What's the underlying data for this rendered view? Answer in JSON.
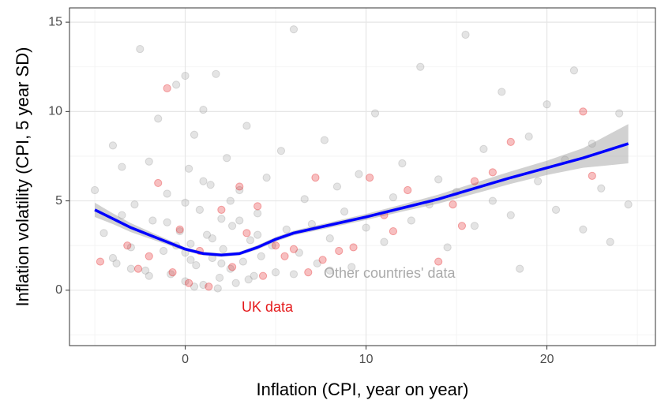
{
  "chart_data": {
    "type": "scatter",
    "xlabel": "Inflation (CPI, year on year)",
    "ylabel": "Inflation volatility (CPI, 5 year SD)",
    "xlim": [
      -6.4,
      26
    ],
    "ylim": [
      -3.1,
      15.8
    ],
    "xticks": [
      0,
      10,
      20
    ],
    "yticks": [
      0,
      5,
      10,
      15
    ],
    "x_minor_grid": [
      -5,
      5,
      15,
      25
    ],
    "y_minor_grid": [
      -2.5,
      2.5,
      7.5,
      12.5
    ],
    "grid": true,
    "series": [
      {
        "name": "Other countries' data",
        "color": "#9e9e9e",
        "x": [
          -5,
          -4.5,
          -4,
          -3.8,
          -3.5,
          -3,
          -2.8,
          -2.5,
          -2.2,
          -2,
          -1.8,
          -1.5,
          -1.2,
          -1,
          -0.8,
          -0.5,
          -0.3,
          0,
          0,
          0.2,
          0.3,
          0.5,
          0.6,
          0.8,
          1,
          1,
          1.2,
          1.4,
          1.5,
          1.7,
          1.9,
          2,
          2.1,
          2.3,
          2.5,
          2.6,
          2.8,
          3,
          3.2,
          3.4,
          3.6,
          3.8,
          4,
          4.2,
          4.5,
          4.8,
          5,
          5.3,
          5.6,
          6,
          6.3,
          6.6,
          7,
          7.3,
          7.7,
          8,
          8.4,
          8.8,
          9.2,
          9.6,
          10,
          10.5,
          11,
          11.5,
          12,
          12.5,
          13,
          13.5,
          14,
          14.5,
          15,
          15.5,
          16,
          16.5,
          17,
          17.5,
          18,
          18.5,
          19,
          19.5,
          20,
          20.5,
          21,
          21.5,
          22,
          22.5,
          23,
          23.5,
          24,
          24.5,
          -3,
          -1,
          0,
          0.5,
          1.5,
          2.5,
          3.5,
          -2,
          1,
          4,
          0,
          2,
          -4,
          -0.5,
          3,
          6,
          8,
          -3.5,
          0.3,
          1.8
        ],
        "y": [
          5.6,
          3.2,
          8.1,
          1.5,
          6.9,
          2.4,
          4.8,
          13.5,
          1.1,
          7.2,
          3.9,
          9.6,
          2.2,
          5.4,
          0.9,
          11.5,
          3.3,
          12,
          0.5,
          6.8,
          2.6,
          8.7,
          1.4,
          4.5,
          0.3,
          10.1,
          3.1,
          5.9,
          1.8,
          12.1,
          0.7,
          4,
          2.3,
          7.4,
          1.2,
          3.6,
          0.4,
          5.6,
          1.6,
          9.2,
          2.8,
          0.8,
          4.3,
          1.9,
          6.3,
          2.5,
          1,
          7.8,
          3.4,
          14.6,
          2.1,
          5.1,
          3.7,
          1.5,
          8.4,
          2.9,
          5.8,
          4.4,
          1.3,
          6.5,
          3.5,
          9.9,
          2.7,
          5.2,
          7.1,
          3.9,
          12.5,
          4.8,
          6.2,
          2.4,
          5.5,
          14.3,
          3.6,
          7.9,
          5,
          11.1,
          4.2,
          1.2,
          8.6,
          6.1,
          10.4,
          4.5,
          7.3,
          12.3,
          3.4,
          8.2,
          5.7,
          2.7,
          9.9,
          4.8,
          1.2,
          3.8,
          4.9,
          0.2,
          2.9,
          5,
          0.6,
          0.8,
          6.1,
          3.1,
          2.1,
          1.5,
          1.8,
          2.5,
          3.9,
          0.9,
          1.1,
          4.2,
          1.7,
          0.1
        ]
      },
      {
        "name": "UK data",
        "color": "#e41a1c",
        "x": [
          -4.7,
          -3.2,
          -2.6,
          -2,
          -1.5,
          -1,
          -0.7,
          -0.3,
          0.2,
          0.8,
          1.3,
          2,
          2.6,
          3,
          3.4,
          4,
          4.3,
          5,
          5.5,
          6,
          6.8,
          7.2,
          7.6,
          8.5,
          9.3,
          10.2,
          11,
          11.5,
          12.3,
          14,
          14.8,
          15.3,
          16,
          17,
          18,
          22,
          22.5
        ],
        "y": [
          1.6,
          2.5,
          1.2,
          1.9,
          6,
          11.3,
          1,
          3.4,
          0.4,
          2.2,
          0.2,
          4.5,
          1.3,
          5.8,
          3.2,
          4.7,
          0.8,
          2.5,
          1.9,
          2.3,
          1,
          6.3,
          1.7,
          2.2,
          2.4,
          6.3,
          4.2,
          3.3,
          5.6,
          1.6,
          4.8,
          3.6,
          6.1,
          6.6,
          8.3,
          10,
          6.4
        ]
      }
    ],
    "smooth": {
      "color": "#0000ff",
      "band_color": "#999999",
      "x": [
        -5,
        -4,
        -3,
        -2,
        -1,
        0,
        1,
        2,
        3,
        4,
        5,
        6,
        8,
        10,
        12,
        14,
        16,
        18,
        20,
        22,
        24.5
      ],
      "y": [
        4.5,
        4,
        3.5,
        3.1,
        2.7,
        2.3,
        2.05,
        1.97,
        2.05,
        2.4,
        2.85,
        3.2,
        3.65,
        4.1,
        4.6,
        5.1,
        5.7,
        6.3,
        6.85,
        7.4,
        8.2
      ],
      "lower": [
        4.1,
        3.7,
        3.25,
        2.9,
        2.55,
        2.2,
        1.95,
        1.87,
        1.95,
        2.28,
        2.72,
        3.07,
        3.5,
        3.93,
        4.4,
        4.85,
        5.4,
        5.95,
        6.45,
        6.85,
        7.1
      ],
      "upper": [
        4.9,
        4.3,
        3.75,
        3.3,
        2.85,
        2.4,
        2.15,
        2.07,
        2.15,
        2.52,
        2.98,
        3.33,
        3.8,
        4.27,
        4.8,
        5.35,
        6,
        6.65,
        7.25,
        7.95,
        9.3
      ]
    }
  }
}
